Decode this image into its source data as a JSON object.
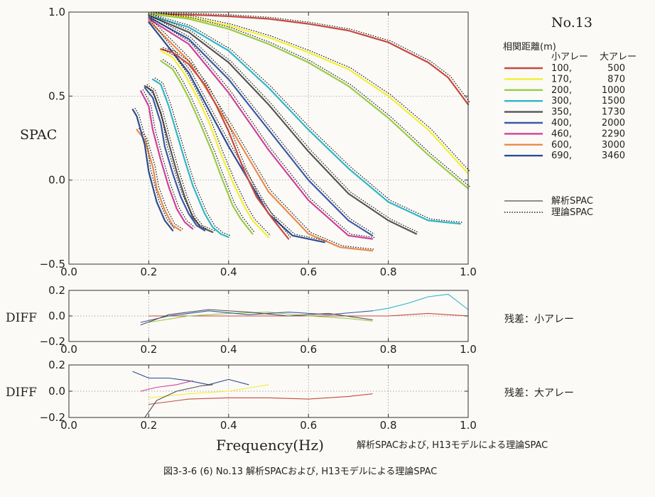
{
  "figure": {
    "caption": "図3-3-6 (6) No.13 解析SPACおよび, H13モデルによる理論SPAC",
    "subcaption": "解析SPACおよび, H13モデルによる理論SPAC",
    "station": "No.13"
  },
  "legend": {
    "title": "相関距離(m)",
    "col_small": "小アレー",
    "col_large": "大アレー",
    "rows": [
      {
        "small": "100,",
        "large": "500",
        "color": "#c8473f"
      },
      {
        "small": "170,",
        "large": "870",
        "color": "#f2ef36"
      },
      {
        "small": "200,",
        "large": "1000",
        "color": "#9acb4a"
      },
      {
        "small": "300,",
        "large": "1500",
        "color": "#2fb5c9"
      },
      {
        "small": "350,",
        "large": "1730",
        "color": "#555555"
      },
      {
        "small": "400,",
        "large": "2000",
        "color": "#3a59a8"
      },
      {
        "small": "460,",
        "large": "2290",
        "color": "#d13f9c"
      },
      {
        "small": "600,",
        "large": "3000",
        "color": "#ea8a4e"
      },
      {
        "small": "690,",
        "large": "3460",
        "color": "#2d4d8f"
      }
    ],
    "line_types": [
      {
        "label": "解析SPAC",
        "style": "solid"
      },
      {
        "label": "理論SPAC",
        "style": "dotted"
      }
    ]
  },
  "residual_labels": {
    "small": "残差：小アレー",
    "large": "残差：大アレー"
  },
  "chart_data": [
    {
      "type": "line",
      "ylabel": "SPAC",
      "xlabel": "",
      "xlim": [
        0.0,
        1.0
      ],
      "ylim": [
        -0.5,
        1.0
      ],
      "xticks": [
        "0.0",
        "0.2",
        "0.4",
        "0.6",
        "0.8",
        "1.0"
      ],
      "yticks": [
        "−0.5",
        "0.0",
        "0.5",
        "1.0"
      ],
      "grid": true,
      "series": [
        {
          "name": "500",
          "color": "#c8473f",
          "x": [
            0.2,
            0.3,
            0.4,
            0.5,
            0.6,
            0.7,
            0.8,
            0.9,
            0.95,
            1.0
          ],
          "y": [
            0.99,
            0.985,
            0.975,
            0.96,
            0.93,
            0.89,
            0.82,
            0.7,
            0.61,
            0.45
          ]
        },
        {
          "name": "870",
          "color": "#f2ef36",
          "x": [
            0.2,
            0.3,
            0.4,
            0.5,
            0.6,
            0.7,
            0.8,
            0.9,
            1.0
          ],
          "y": [
            0.99,
            0.97,
            0.92,
            0.85,
            0.76,
            0.66,
            0.5,
            0.3,
            0.04
          ]
        },
        {
          "name": "1000",
          "color": "#9acb4a",
          "x": [
            0.2,
            0.3,
            0.4,
            0.5,
            0.6,
            0.7,
            0.8,
            0.9,
            1.0
          ],
          "y": [
            0.99,
            0.96,
            0.9,
            0.81,
            0.7,
            0.56,
            0.37,
            0.15,
            -0.05
          ]
        },
        {
          "name": "1500",
          "color": "#2fb5c9",
          "x": [
            0.2,
            0.3,
            0.4,
            0.5,
            0.6,
            0.7,
            0.8,
            0.9,
            0.98
          ],
          "y": [
            0.98,
            0.91,
            0.77,
            0.55,
            0.3,
            0.07,
            -0.13,
            -0.24,
            -0.26
          ]
        },
        {
          "name": "1730",
          "color": "#555555",
          "x": [
            0.2,
            0.3,
            0.4,
            0.5,
            0.6,
            0.7,
            0.8,
            0.87
          ],
          "y": [
            0.98,
            0.88,
            0.7,
            0.45,
            0.17,
            -0.08,
            -0.24,
            -0.32
          ]
        },
        {
          "name": "2000",
          "color": "#3a59a8",
          "x": [
            0.2,
            0.3,
            0.4,
            0.5,
            0.6,
            0.7,
            0.76
          ],
          "y": [
            0.97,
            0.84,
            0.6,
            0.3,
            0.0,
            -0.24,
            -0.33
          ]
        },
        {
          "name": "2290",
          "color": "#d13f9c",
          "x": [
            0.2,
            0.3,
            0.4,
            0.5,
            0.6,
            0.7,
            0.76
          ],
          "y": [
            0.96,
            0.81,
            0.52,
            0.18,
            -0.12,
            -0.33,
            -0.35
          ]
        },
        {
          "name": "3000",
          "color": "#ea8a4e",
          "x": [
            0.2,
            0.3,
            0.4,
            0.5,
            0.6,
            0.68,
            0.76
          ],
          "y": [
            0.95,
            0.71,
            0.33,
            -0.07,
            -0.32,
            -0.4,
            -0.42
          ]
        },
        {
          "name": "3460",
          "color": "#2d4d8f",
          "x": [
            0.2,
            0.3,
            0.4,
            0.5,
            0.56,
            0.64
          ],
          "y": [
            0.94,
            0.64,
            0.2,
            -0.2,
            -0.33,
            -0.37
          ]
        },
        {
          "name": "100",
          "color": "#c8473f",
          "x": [
            0.23,
            0.26,
            0.3,
            0.34,
            0.37,
            0.4,
            0.44,
            0.47,
            0.51,
            0.55
          ],
          "y": [
            0.78,
            0.76,
            0.69,
            0.57,
            0.44,
            0.29,
            0.05,
            -0.1,
            -0.23,
            -0.35
          ]
        },
        {
          "name": "170",
          "color": "#f2ef36",
          "x": [
            0.23,
            0.26,
            0.29,
            0.32,
            0.35,
            0.38,
            0.41,
            0.44,
            0.46,
            0.5
          ],
          "y": [
            0.77,
            0.73,
            0.63,
            0.5,
            0.35,
            0.16,
            -0.01,
            -0.16,
            -0.24,
            -0.34
          ]
        },
        {
          "name": "200",
          "color": "#9acb4a",
          "x": [
            0.23,
            0.26,
            0.28,
            0.3,
            0.33,
            0.36,
            0.38,
            0.41,
            0.43,
            0.46
          ],
          "y": [
            0.71,
            0.66,
            0.58,
            0.49,
            0.33,
            0.16,
            0.03,
            -0.15,
            -0.23,
            -0.32
          ]
        },
        {
          "name": "300",
          "color": "#2fb5c9",
          "x": [
            0.21,
            0.23,
            0.25,
            0.27,
            0.29,
            0.31,
            0.34,
            0.36,
            0.38,
            0.4
          ],
          "y": [
            0.6,
            0.57,
            0.44,
            0.28,
            0.12,
            -0.03,
            -0.2,
            -0.28,
            -0.32,
            -0.34
          ]
        },
        {
          "name": "350",
          "color": "#555555",
          "x": [
            0.19,
            0.21,
            0.23,
            0.25,
            0.27,
            0.29,
            0.31,
            0.33,
            0.36
          ],
          "y": [
            0.56,
            0.53,
            0.4,
            0.22,
            0.05,
            -0.1,
            -0.22,
            -0.28,
            -0.31
          ]
        },
        {
          "name": "400",
          "color": "#3a59a8",
          "x": [
            0.19,
            0.21,
            0.23,
            0.24,
            0.26,
            0.28,
            0.3,
            0.32,
            0.34
          ],
          "y": [
            0.55,
            0.49,
            0.34,
            0.2,
            0.04,
            -0.1,
            -0.2,
            -0.27,
            -0.3
          ]
        },
        {
          "name": "460",
          "color": "#d13f9c",
          "x": [
            0.18,
            0.2,
            0.21,
            0.23,
            0.25,
            0.27,
            0.29,
            0.31
          ],
          "y": [
            0.53,
            0.44,
            0.3,
            0.12,
            -0.04,
            -0.17,
            -0.25,
            -0.29
          ]
        },
        {
          "name": "600",
          "color": "#ea8a4e",
          "x": [
            0.17,
            0.19,
            0.21,
            0.22,
            0.24,
            0.26,
            0.28
          ],
          "y": [
            0.3,
            0.24,
            0.08,
            -0.05,
            -0.18,
            -0.27,
            -0.3
          ]
        },
        {
          "name": "690",
          "color": "#2d4d8f",
          "x": [
            0.16,
            0.17,
            0.19,
            0.2,
            0.22,
            0.24,
            0.26
          ],
          "y": [
            0.42,
            0.38,
            0.21,
            0.05,
            -0.13,
            -0.24,
            -0.3
          ]
        }
      ]
    },
    {
      "type": "line",
      "ylabel": "DIFF",
      "xlabel": "",
      "xlim": [
        0.0,
        1.0
      ],
      "ylim": [
        -0.2,
        0.2
      ],
      "xticks": [
        "0.0",
        "0.2",
        "0.4",
        "0.6",
        "0.8",
        "1.0"
      ],
      "yticks": [
        "−0.2",
        "0.0",
        "0.2"
      ],
      "grid": true,
      "series": [
        {
          "name": "500",
          "color": "#c8473f",
          "x": [
            0.2,
            0.4,
            0.6,
            0.8,
            0.9,
            1.0
          ],
          "y": [
            0.0,
            0.0,
            0.0,
            0.0,
            0.02,
            0.0
          ]
        },
        {
          "name": "1500",
          "color": "#2fb5c9",
          "x": [
            0.76,
            0.8,
            0.85,
            0.9,
            0.95,
            1.0
          ],
          "y": [
            0.04,
            0.06,
            0.1,
            0.15,
            0.17,
            0.05
          ]
        },
        {
          "name": "1000",
          "color": "#9acb4a",
          "x": [
            0.2,
            0.3,
            0.4,
            0.5,
            0.6,
            0.7,
            0.76
          ],
          "y": [
            -0.05,
            0.0,
            0.02,
            0.03,
            0.0,
            -0.02,
            -0.04
          ]
        },
        {
          "name": "2000",
          "color": "#3a59a8",
          "x": [
            0.18,
            0.25,
            0.35,
            0.45,
            0.55,
            0.65,
            0.76
          ],
          "y": [
            -0.05,
            0.0,
            0.04,
            0.01,
            0.03,
            0.01,
            0.04
          ]
        },
        {
          "name": "1730",
          "color": "#555555",
          "x": [
            0.18,
            0.25,
            0.35,
            0.45,
            0.55,
            0.65,
            0.76
          ],
          "y": [
            -0.07,
            0.01,
            0.05,
            0.03,
            0.0,
            0.02,
            -0.03
          ]
        }
      ]
    },
    {
      "type": "line",
      "ylabel": "DIFF",
      "xlabel": "Frequency(Hz)",
      "xlim": [
        0.0,
        1.0
      ],
      "ylim": [
        -0.2,
        0.2
      ],
      "xticks": [
        "0.0",
        "0.2",
        "0.4",
        "0.6",
        "0.8",
        "1.0"
      ],
      "yticks": [
        "−0.2",
        "0.0",
        "0.2"
      ],
      "grid": true,
      "series": [
        {
          "name": "100",
          "color": "#c8473f",
          "x": [
            0.2,
            0.3,
            0.4,
            0.5,
            0.6,
            0.7,
            0.76
          ],
          "y": [
            -0.1,
            -0.06,
            -0.05,
            -0.05,
            -0.06,
            -0.04,
            -0.02
          ]
        },
        {
          "name": "690",
          "color": "#2d4d8f",
          "x": [
            0.16,
            0.2,
            0.25,
            0.3,
            0.35,
            0.4,
            0.45
          ],
          "y": [
            0.15,
            0.1,
            0.1,
            0.08,
            0.05,
            0.09,
            0.05
          ]
        },
        {
          "name": "460",
          "color": "#d13f9c",
          "x": [
            0.18,
            0.22,
            0.27,
            0.31
          ],
          "y": [
            0.0,
            0.03,
            0.05,
            0.08
          ]
        },
        {
          "name": "170",
          "color": "#f2ef36",
          "x": [
            0.2,
            0.3,
            0.4,
            0.5
          ],
          "y": [
            -0.05,
            -0.02,
            0.0,
            0.05
          ]
        },
        {
          "name": "350",
          "color": "#555555",
          "x": [
            0.19,
            0.22,
            0.27,
            0.33,
            0.36
          ],
          "y": [
            -0.2,
            -0.07,
            0.0,
            0.04,
            0.05
          ]
        }
      ]
    }
  ]
}
